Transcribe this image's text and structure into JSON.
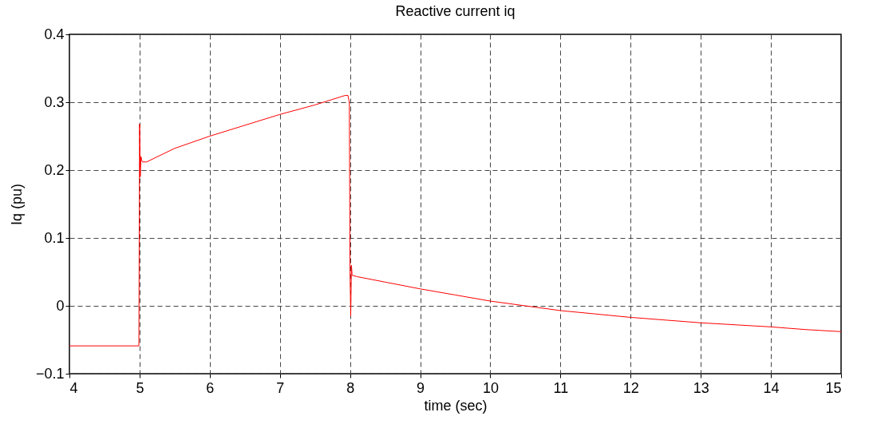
{
  "chart_data": {
    "type": "line",
    "title": "Reactive current iq",
    "xlabel": "time (sec)",
    "ylabel": "Iq (pu)",
    "xlim": [
      4,
      15
    ],
    "xticks": [
      4,
      5,
      6,
      7,
      8,
      9,
      10,
      11,
      12,
      13,
      14,
      15
    ],
    "ylim": [
      -0.1,
      0.4
    ],
    "yticks": [
      -0.1,
      0,
      0.1,
      0.2,
      0.3,
      0.4
    ],
    "grid": true,
    "series": [
      {
        "color": "#ff0000",
        "x": [
          4,
          4.99,
          5.0,
          5.01,
          5.02,
          5.03,
          5.04,
          5.1,
          5.5,
          6,
          6.5,
          7,
          7.5,
          7.93,
          7.97,
          7.99,
          8.0,
          8.01,
          8.02,
          8.03,
          8.1,
          8.5,
          9,
          9.5,
          10,
          10.5,
          11,
          11.5,
          12,
          12.5,
          13,
          13.5,
          14,
          14.5,
          15
        ],
        "values": [
          -0.059,
          -0.059,
          0.268,
          0.19,
          0.22,
          0.215,
          0.212,
          0.212,
          0.232,
          0.25,
          0.266,
          0.282,
          0.296,
          0.31,
          0.31,
          0.3,
          0.05,
          -0.015,
          0.06,
          0.045,
          0.043,
          0.035,
          0.025,
          0.016,
          0.007,
          0,
          -0.007,
          -0.012,
          -0.017,
          -0.021,
          -0.025,
          -0.028,
          -0.031,
          -0.035,
          -0.038
        ]
      }
    ]
  }
}
